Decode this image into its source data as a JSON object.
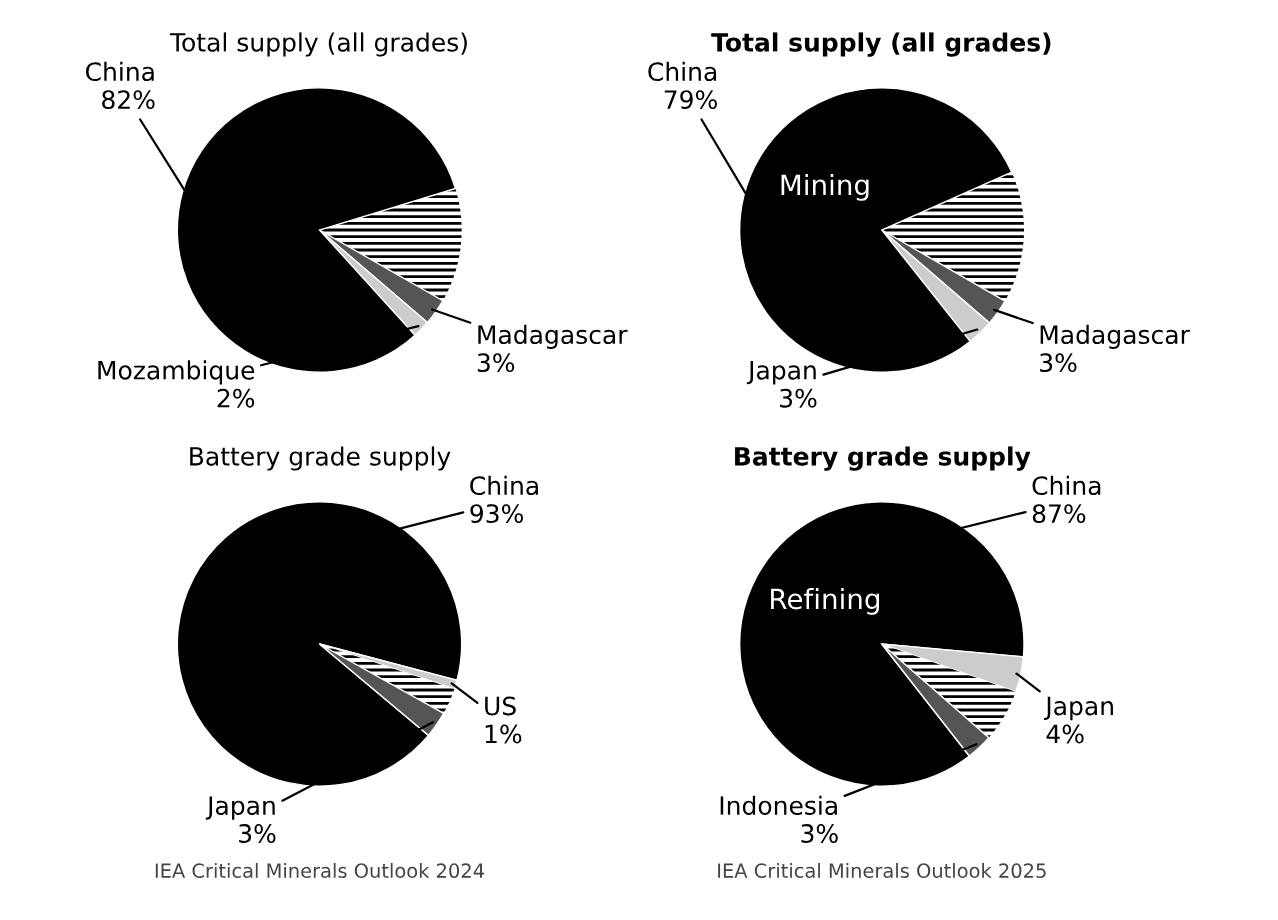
{
  "chart_data": [
    {
      "type": "pie",
      "title": "Total supply (all grades)",
      "categories": [
        null,
        "Madagascar",
        "Mozambique",
        "China"
      ],
      "values": [
        13,
        3,
        2,
        82
      ],
      "value_labels": [
        null,
        "3%",
        "2%",
        "82%"
      ],
      "colors": [
        "#ffffff",
        "#555555",
        "#cccccc",
        "#000000"
      ]
    },
    {
      "type": "pie",
      "title": "Total supply (all grades)",
      "categories": [
        null,
        "Madagascar",
        "Japan",
        "China"
      ],
      "values": [
        15,
        3,
        3,
        79
      ],
      "value_labels": [
        null,
        "3%",
        "3%",
        "79%"
      ],
      "colors": [
        "#ffffff",
        "#555555",
        "#cccccc",
        "#000000"
      ],
      "annotations": [
        "Mining"
      ]
    },
    {
      "type": "pie",
      "title": "Battery grade supply",
      "categories": [
        "China",
        "US",
        null,
        "Japan"
      ],
      "values": [
        93,
        1,
        3,
        3
      ],
      "value_labels": [
        "93%",
        "1%",
        null,
        "3%"
      ],
      "colors": [
        "#000000",
        "#cccccc",
        "#ffffff",
        "#555555"
      ],
      "annotations": [
        "IEA Critical Minerals Outlook 2024"
      ]
    },
    {
      "type": "pie",
      "title": "Battery grade supply",
      "categories": [
        "China",
        "Japan",
        null,
        "Indonesia"
      ],
      "values": [
        87,
        4,
        6,
        3
      ],
      "value_labels": [
        "87%",
        "4%",
        null,
        "3%"
      ],
      "colors": [
        "#000000",
        "#cccccc",
        "#ffffff",
        "#555555"
      ],
      "annotations": [
        "Refining",
        "IEA Critical Minerals Outlook 2025"
      ]
    }
  ]
}
